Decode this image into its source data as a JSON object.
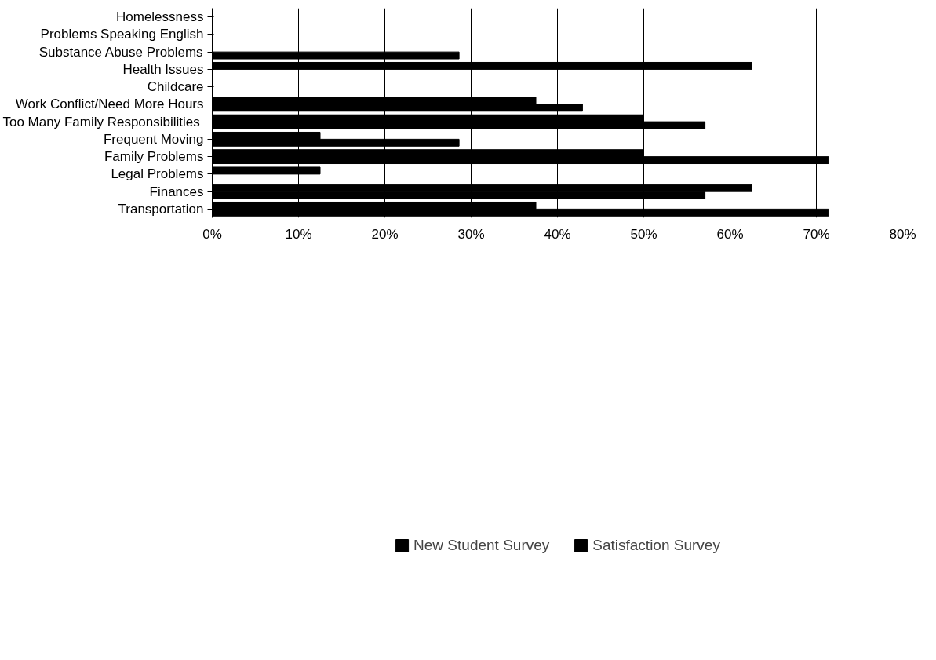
{
  "chart_data": {
    "type": "bar",
    "orientation": "horizontal",
    "categories": [
      "Homelessness",
      "Problems Speaking English",
      "Substance Abuse Problems",
      "Health Issues",
      "Childcare",
      "Work Conflict/Need More Hours",
      "Too Many Family  Responsibilities",
      "Frequent Moving",
      "Family Problems",
      "Legal Problems",
      "Finances",
      "Transportation"
    ],
    "series": [
      {
        "name": "New Student Survey",
        "color": "#000000",
        "values": [
          null,
          null,
          28.6,
          null,
          null,
          42.9,
          57.1,
          28.6,
          71.4,
          null,
          57.1,
          71.4
        ]
      },
      {
        "name": "Satisfaction Survey",
        "color": "#000000",
        "values": [
          null,
          null,
          null,
          62.5,
          null,
          37.5,
          50,
          12.5,
          50,
          12.5,
          62.5,
          37.5
        ]
      }
    ],
    "xlim": [
      0,
      80
    ],
    "xticks": [
      {
        "value": 0,
        "label": "0%"
      },
      {
        "value": 10,
        "label": "10%"
      },
      {
        "value": 20,
        "label": "20%"
      },
      {
        "value": 30,
        "label": "30%"
      },
      {
        "value": 40,
        "label": "40%"
      },
      {
        "value": 50,
        "label": "50%"
      },
      {
        "value": 60,
        "label": "60%"
      },
      {
        "value": 70,
        "label": "70%"
      },
      {
        "value": 80,
        "label": "80%"
      }
    ],
    "grid": "x",
    "legend": "bottom"
  }
}
